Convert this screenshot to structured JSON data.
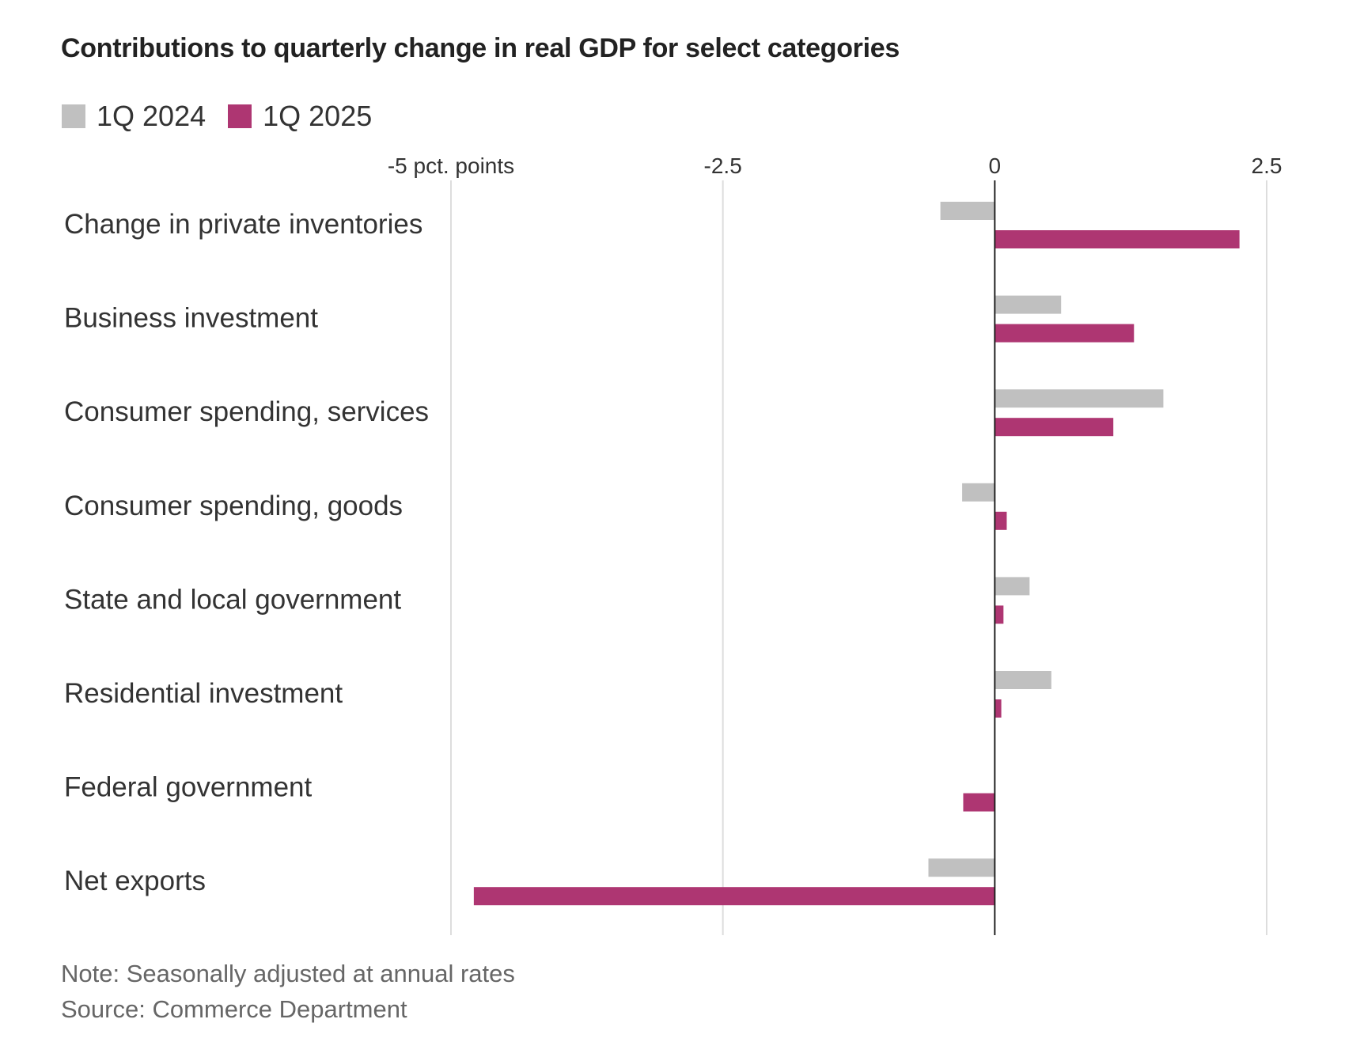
{
  "title": "Contributions to quarterly change in real GDP for select categories",
  "legend": [
    {
      "label": "1Q 2024",
      "color": "#c0c0c0"
    },
    {
      "label": "1Q 2025",
      "color": "#ae3672"
    }
  ],
  "footer": {
    "note": "Note: Seasonally adjusted at annual rates",
    "source": "Source: Commerce Department"
  },
  "colors": {
    "gridline": "#dddddd",
    "zero_line": "#222222",
    "text": "#333333"
  },
  "chart_data": {
    "type": "bar",
    "orientation": "horizontal",
    "title": "Contributions to quarterly change in real GDP for select categories",
    "xlabel": "pct. points",
    "ylabel": "",
    "xlim": [
      -5,
      2.5
    ],
    "ticks": [
      {
        "value": -5,
        "label": "-5 pct. points"
      },
      {
        "value": -2.5,
        "label": "-2.5"
      },
      {
        "value": 0,
        "label": "0"
      },
      {
        "value": 2.5,
        "label": "2.5"
      }
    ],
    "grid": true,
    "legend_position": "top-left",
    "categories": [
      "Change in private inventories",
      "Business investment",
      "Consumer spending, services",
      "Consumer spending, goods",
      "State and local government",
      "Residential investment",
      "Federal government",
      "Net exports"
    ],
    "series": [
      {
        "name": "1Q 2024",
        "color": "#c0c0c0",
        "values": [
          -0.5,
          0.61,
          1.55,
          -0.3,
          0.32,
          0.52,
          0.0,
          -0.61
        ]
      },
      {
        "name": "1Q 2025",
        "color": "#ae3672",
        "values": [
          2.25,
          1.28,
          1.09,
          0.11,
          0.08,
          0.06,
          -0.29,
          -4.79
        ]
      }
    ]
  }
}
